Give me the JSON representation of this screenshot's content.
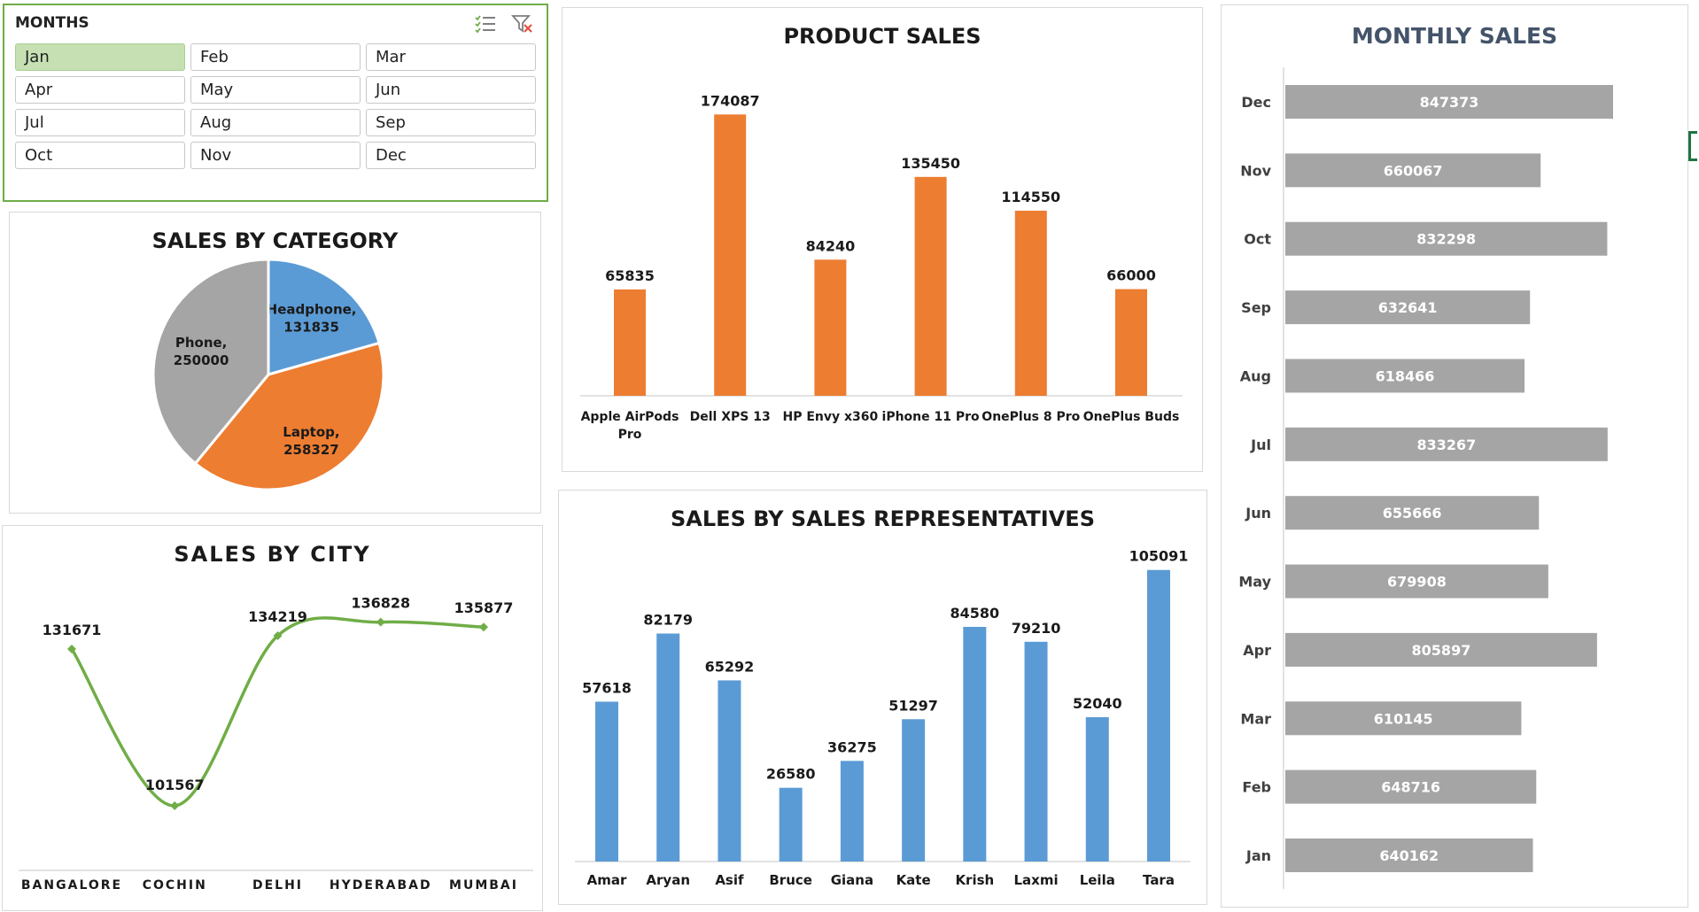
{
  "colors": {
    "orange": "#ed7d31",
    "blue": "#5b9bd5",
    "gray": "#a5a5a5",
    "green": "#70ad47",
    "slicer_selected": "#c6e0b4"
  },
  "slicer": {
    "header": "MONTHS",
    "selected": "Jan",
    "items": [
      "Jan",
      "Feb",
      "Mar",
      "Apr",
      "May",
      "Jun",
      "Jul",
      "Aug",
      "Sep",
      "Oct",
      "Nov",
      "Dec"
    ],
    "icons": [
      "multi-select-icon",
      "clear-filter-icon"
    ]
  },
  "chart_data": [
    {
      "id": "category",
      "type": "pie",
      "title": "SALES BY CATEGORY",
      "categories": [
        "Headphone",
        "Laptop",
        "Phone"
      ],
      "values": [
        131835,
        258327,
        250000
      ],
      "colors": [
        "#5b9bd5",
        "#ed7d31",
        "#a5a5a5"
      ],
      "legend": "none"
    },
    {
      "id": "city",
      "type": "line",
      "title": "SALES BY CITY",
      "categories": [
        "BANGALORE",
        "COCHIN",
        "DELHI",
        "HYDERABAD",
        "MUMBAI"
      ],
      "values": [
        131671,
        101567,
        134219,
        136828,
        135877
      ],
      "smooth": true,
      "color": "#70ad47",
      "legend": "none",
      "grid": false
    },
    {
      "id": "product",
      "type": "bar",
      "title": "PRODUCT SALES",
      "categories": [
        "Apple AirPods Pro",
        "Dell XPS 13",
        "HP Envy x360",
        "iPhone 11 Pro",
        "OnePlus 8 Pro",
        "OnePlus Buds"
      ],
      "values": [
        65835,
        174087,
        84240,
        135450,
        114550,
        66000
      ],
      "color": "#ed7d31",
      "ylim": [
        0,
        200000
      ],
      "legend": "none",
      "grid": false
    },
    {
      "id": "reps",
      "type": "bar",
      "title": "SALES BY SALES REPRESENTATIVES",
      "categories": [
        "Amar",
        "Aryan",
        "Asif",
        "Bruce",
        "Giana",
        "Kate",
        "Krish",
        "Laxmi",
        "Leila",
        "Tara"
      ],
      "values": [
        57618,
        82179,
        65292,
        26580,
        36275,
        51297,
        84580,
        79210,
        52040,
        105091
      ],
      "color": "#5b9bd5",
      "ylim": [
        0,
        120000
      ],
      "legend": "none",
      "grid": false
    },
    {
      "id": "monthly",
      "type": "bar",
      "orientation": "horizontal",
      "title": "MONTHLY SALES",
      "categories": [
        "Dec",
        "Nov",
        "Oct",
        "Sep",
        "Aug",
        "Jul",
        "Jun",
        "May",
        "Apr",
        "Mar",
        "Feb",
        "Jan"
      ],
      "values": [
        847373,
        660067,
        832298,
        632641,
        618466,
        833267,
        655666,
        679908,
        805897,
        610145,
        648716,
        640162
      ],
      "color": "#a5a5a5",
      "xlim": [
        0,
        1000000
      ],
      "legend": "none",
      "grid": false
    }
  ]
}
